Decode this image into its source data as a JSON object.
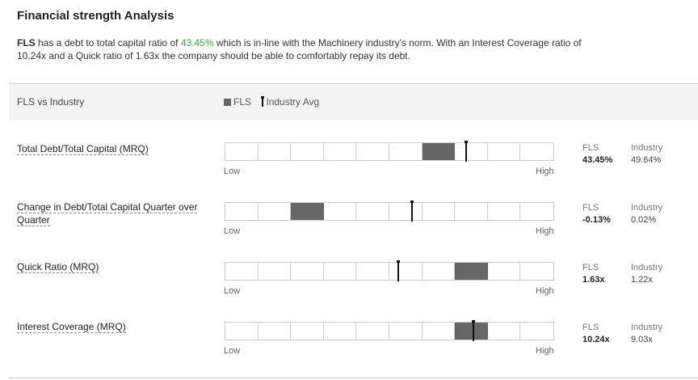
{
  "title": "Financial strength Analysis",
  "description": {
    "ticker": "FLS",
    "part1": " has a debt to total capital ratio of ",
    "ratio": "43.45%",
    "part2": " which is in-line with the Machinery industry's norm. With an Interest Coverage ratio of 10.24x and a Quick ratio of 1.63x the company should be able to comfortably repay its debt."
  },
  "header": {
    "left_label": "FLS vs Industry",
    "legend_fls": "FLS",
    "legend_industry": "Industry Avg"
  },
  "colors": {
    "fls_bar": "#666666",
    "industry_marker": "#111111",
    "positive_text": "#3aa83a"
  },
  "scale": {
    "low_label": "Low",
    "high_label": "High",
    "segments": 10
  },
  "metrics": [
    {
      "label": "Total Debt/Total Capital (MRQ)",
      "fls_head": "FLS",
      "fls_value": "43.45%",
      "industry_head": "Industry",
      "industry_value": "49.64%",
      "fls_segment": 6,
      "industry_position": 0.735
    },
    {
      "label": "Change in Debt/Total Capital Quarter over Quarter",
      "fls_head": "FLS",
      "fls_value": "-0.13%",
      "industry_head": "Industry",
      "industry_value": "0.02%",
      "fls_segment": 2,
      "industry_position": 0.568
    },
    {
      "label": "Quick Ratio (MRQ)",
      "fls_head": "FLS",
      "fls_value": "1.63x",
      "industry_head": "Industry",
      "industry_value": "1.22x",
      "fls_segment": 7,
      "industry_position": 0.528
    },
    {
      "label": "Interest Coverage (MRQ)",
      "fls_head": "FLS",
      "fls_value": "10.24x",
      "industry_head": "Industry",
      "industry_value": "9.03x",
      "fls_segment": 7,
      "industry_position": 0.755
    }
  ]
}
